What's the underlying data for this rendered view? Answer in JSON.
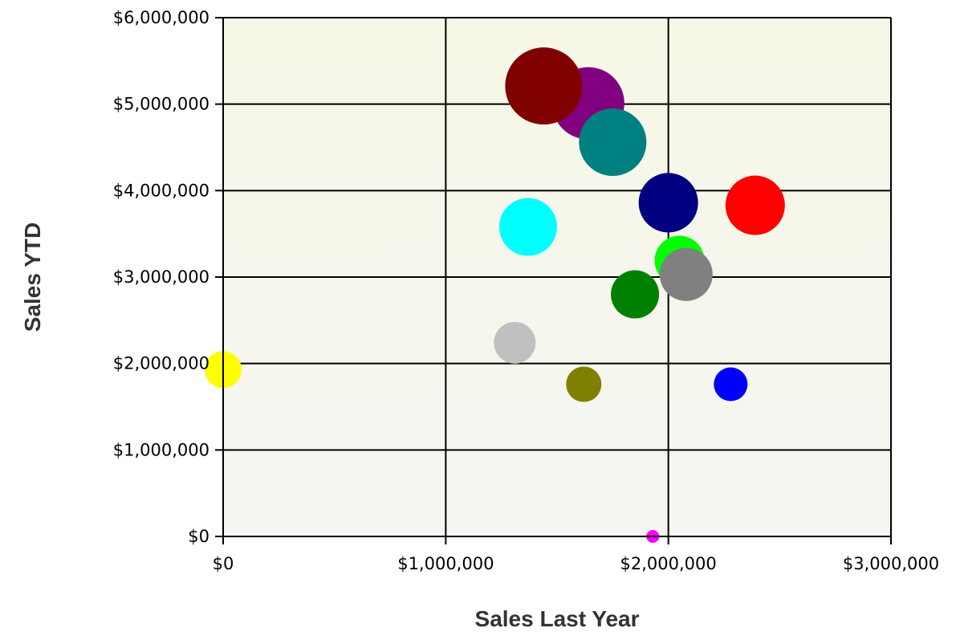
{
  "chart_data": {
    "type": "scatter",
    "variant": "bubble",
    "title": "",
    "xlabel": "Sales Last Year",
    "ylabel": "Sales YTD",
    "xlim": [
      0,
      3000000
    ],
    "ylim": [
      0,
      6000000
    ],
    "x_ticks": [
      0,
      1000000,
      2000000,
      3000000
    ],
    "x_tick_labels": [
      "$0",
      "$1,000,000",
      "$2,000,000",
      "$3,000,000"
    ],
    "y_ticks": [
      0,
      1000000,
      2000000,
      3000000,
      4000000,
      5000000,
      6000000
    ],
    "y_tick_labels": [
      "$0",
      "$1,000,000",
      "$2,000,000",
      "$3,000,000",
      "$4,000,000",
      "$5,000,000",
      "$6,000,000"
    ],
    "grid": true,
    "legend": "none",
    "background_gradient": [
      "#f6f7e6",
      "#f5f6f2"
    ],
    "bubbles": [
      {
        "x": 1640000,
        "y": 5010000,
        "size": 45,
        "color": "#800080"
      },
      {
        "x": 1440000,
        "y": 5210000,
        "size": 48,
        "color": "#800000"
      },
      {
        "x": 1750000,
        "y": 4560000,
        "size": 42,
        "color": "#008080"
      },
      {
        "x": 2000000,
        "y": 3860000,
        "size": 37,
        "color": "#000080"
      },
      {
        "x": 2390000,
        "y": 3830000,
        "size": 37,
        "color": "#ff0000"
      },
      {
        "x": 1370000,
        "y": 3580000,
        "size": 36,
        "color": "#00ffff"
      },
      {
        "x": 2050000,
        "y": 3190000,
        "size": 31,
        "color": "#00ff00"
      },
      {
        "x": 2080000,
        "y": 3030000,
        "size": 33,
        "color": "#808080"
      },
      {
        "x": 1850000,
        "y": 2800000,
        "size": 30,
        "color": "#008000"
      },
      {
        "x": 1310000,
        "y": 2240000,
        "size": 26,
        "color": "#c0c0c0"
      },
      {
        "x": 0,
        "y": 1930000,
        "size": 23,
        "color": "#ffff00"
      },
      {
        "x": 1620000,
        "y": 1760000,
        "size": 22,
        "color": "#808000"
      },
      {
        "x": 2280000,
        "y": 1760000,
        "size": 21,
        "color": "#0000ff"
      },
      {
        "x": 1930000,
        "y": 0,
        "size": 8,
        "color": "#ff00ff"
      }
    ]
  }
}
